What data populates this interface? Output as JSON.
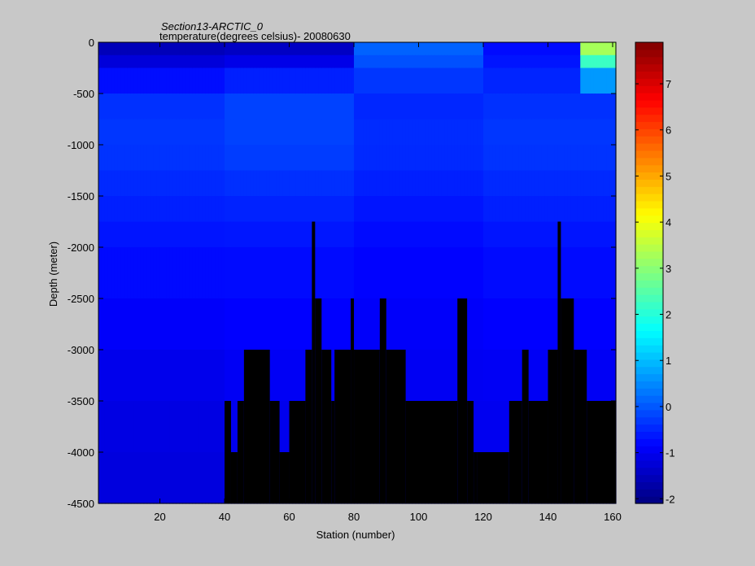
{
  "chart_data": {
    "type": "heatmap",
    "title": "Section13-ARCTIC_0",
    "subtitle": "temperature(degrees  celsius)- 20080630",
    "xlabel": "Station (number)",
    "ylabel": "Depth (meter)",
    "xlim": [
      1,
      161
    ],
    "ylim": [
      -4500,
      0
    ],
    "x_ticks": [
      20,
      40,
      60,
      80,
      100,
      120,
      140,
      160
    ],
    "y_ticks": [
      0,
      -500,
      -1000,
      -1500,
      -2000,
      -2500,
      -3000,
      -3500,
      -4000,
      -4500
    ],
    "colorbar": {
      "range": [
        -2.1,
        7.9
      ],
      "ticks": [
        7,
        6,
        5,
        4,
        3,
        2,
        1,
        0,
        -1,
        -2
      ],
      "colormap": "jet"
    },
    "depth_levels": [
      0,
      -125,
      -250,
      -500,
      -750,
      -1000,
      -1250,
      -1500,
      -1750,
      -2000,
      -2500,
      -3000,
      -3500,
      -4000,
      -4500
    ],
    "bottom_depth_by_station_range": [
      {
        "from": 1,
        "to": 40,
        "depth": -4500
      },
      {
        "from": 40,
        "to": 42,
        "depth": -3500
      },
      {
        "from": 42,
        "to": 44,
        "depth": -4000
      },
      {
        "from": 44,
        "to": 46,
        "depth": -3500
      },
      {
        "from": 46,
        "to": 54,
        "depth": -3000
      },
      {
        "from": 54,
        "to": 57,
        "depth": -3500
      },
      {
        "from": 57,
        "to": 60,
        "depth": -4000
      },
      {
        "from": 60,
        "to": 65,
        "depth": -3500
      },
      {
        "from": 65,
        "to": 67,
        "depth": -3000
      },
      {
        "from": 67,
        "to": 68,
        "depth": -1750
      },
      {
        "from": 68,
        "to": 70,
        "depth": -2500
      },
      {
        "from": 70,
        "to": 73,
        "depth": -3000
      },
      {
        "from": 73,
        "to": 74,
        "depth": -3500
      },
      {
        "from": 74,
        "to": 79,
        "depth": -3000
      },
      {
        "from": 79,
        "to": 80,
        "depth": -2500
      },
      {
        "from": 80,
        "to": 88,
        "depth": -3000
      },
      {
        "from": 88,
        "to": 90,
        "depth": -2500
      },
      {
        "from": 90,
        "to": 96,
        "depth": -3000
      },
      {
        "from": 96,
        "to": 112,
        "depth": -3500
      },
      {
        "from": 112,
        "to": 115,
        "depth": -2500
      },
      {
        "from": 115,
        "to": 117,
        "depth": -3500
      },
      {
        "from": 117,
        "to": 118,
        "depth": -4000
      },
      {
        "from": 118,
        "to": 128,
        "depth": -4000
      },
      {
        "from": 128,
        "to": 132,
        "depth": -3500
      },
      {
        "from": 132,
        "to": 134,
        "depth": -3000
      },
      {
        "from": 134,
        "to": 140,
        "depth": -3500
      },
      {
        "from": 140,
        "to": 143,
        "depth": -3000
      },
      {
        "from": 143,
        "to": 144,
        "depth": -1750
      },
      {
        "from": 144,
        "to": 148,
        "depth": -2500
      },
      {
        "from": 148,
        "to": 152,
        "depth": -3000
      },
      {
        "from": 152,
        "to": 161,
        "depth": -3500
      }
    ],
    "temperature_profile_by_region": [
      {
        "stations": [
          1,
          40
        ],
        "surface": -1.7,
        "at_500": -0.4,
        "at_1000": -0.3,
        "at_2000": -0.7,
        "at_3500": -1.1,
        "at_4500": -1.2
      },
      {
        "stations": [
          40,
          80
        ],
        "surface": -1.6,
        "at_500": -0.2,
        "at_1000": -0.2,
        "at_2000": -0.7,
        "at_3500": -1.0,
        "at_4500": -1.1
      },
      {
        "stations": [
          80,
          120
        ],
        "surface": 0.2,
        "at_500": -0.5,
        "at_1000": -0.4,
        "at_2000": -0.8,
        "at_3500": -1.0,
        "at_4500": -1.0
      },
      {
        "stations": [
          120,
          150
        ],
        "surface": -0.8,
        "at_500": -0.4,
        "at_1000": -0.3,
        "at_2000": -0.7,
        "at_3500": -1.0,
        "at_4500": -1.0
      },
      {
        "stations": [
          150,
          161
        ],
        "surface": 3.8,
        "at_500": -0.4,
        "at_1000": -0.3,
        "at_2000": -0.7,
        "at_3500": -1.0,
        "at_4500": -1.0
      }
    ]
  }
}
